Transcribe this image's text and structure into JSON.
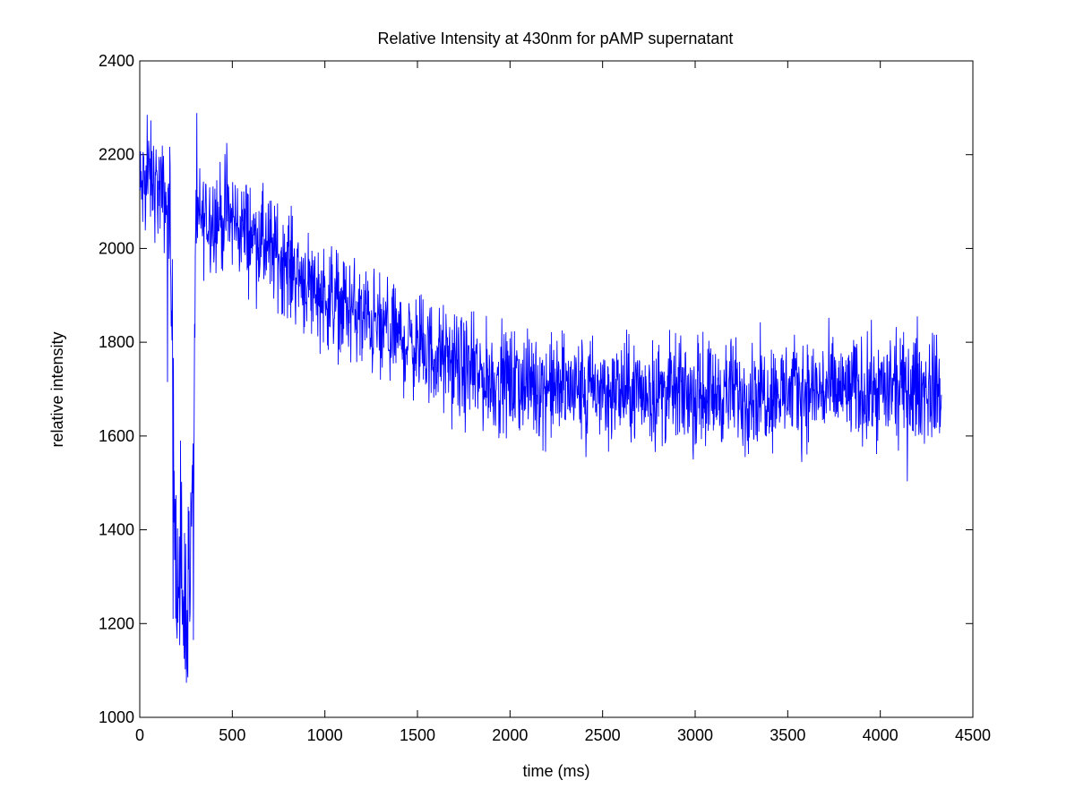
{
  "chart_data": {
    "type": "line",
    "title": "Relative Intensity at 430nm for pAMP supernatant",
    "xlabel": "time (ms)",
    "ylabel": "relative intensity",
    "xlim": [
      0,
      4500
    ],
    "ylim": [
      1000,
      2400
    ],
    "xticks": [
      0,
      500,
      1000,
      1500,
      2000,
      2500,
      3000,
      3500,
      4000,
      4500
    ],
    "yticks": [
      1000,
      1200,
      1400,
      1600,
      1800,
      2000,
      2200,
      2400
    ],
    "grid": false,
    "legend": "none",
    "series": [
      {
        "color": "#0000ff",
        "x_range": [
          0,
          4330
        ],
        "baseline": {
          "x": [
            0,
            60,
            120,
            160,
            175,
            200,
            240,
            270,
            290,
            300,
            320,
            400,
            500,
            600,
            700,
            800,
            900,
            1000,
            1100,
            1200,
            1300,
            1400,
            1500,
            1600,
            1700,
            1800,
            1900,
            2000,
            2100,
            2200,
            2300,
            2400,
            2500,
            2600,
            3000,
            3500,
            4000,
            4330
          ],
          "y": [
            2120,
            2150,
            2110,
            2090,
            1800,
            1260,
            1240,
            1280,
            1500,
            2020,
            2060,
            2070,
            2060,
            2030,
            2000,
            1970,
            1930,
            1900,
            1880,
            1855,
            1830,
            1810,
            1790,
            1770,
            1750,
            1730,
            1720,
            1715,
            1710,
            1705,
            1700,
            1700,
            1695,
            1695,
            1692,
            1695,
            1698,
            1700
          ]
        },
        "noise_amplitude": 55,
        "spikes": [
          {
            "x": 40,
            "y": 2285
          },
          {
            "x": 150,
            "y": 1715
          },
          {
            "x": 180,
            "y": 1210
          },
          {
            "x": 220,
            "y": 1590
          },
          {
            "x": 240,
            "y": 1125
          },
          {
            "x": 265,
            "y": 1440
          },
          {
            "x": 290,
            "y": 1165
          },
          {
            "x": 470,
            "y": 2225
          },
          {
            "x": 1200,
            "y": 1760
          },
          {
            "x": 1300,
            "y": 1720
          },
          {
            "x": 2410,
            "y": 1555
          },
          {
            "x": 2990,
            "y": 1550
          },
          {
            "x": 3270,
            "y": 1555
          },
          {
            "x": 4200,
            "y": 1855
          }
        ]
      }
    ]
  }
}
